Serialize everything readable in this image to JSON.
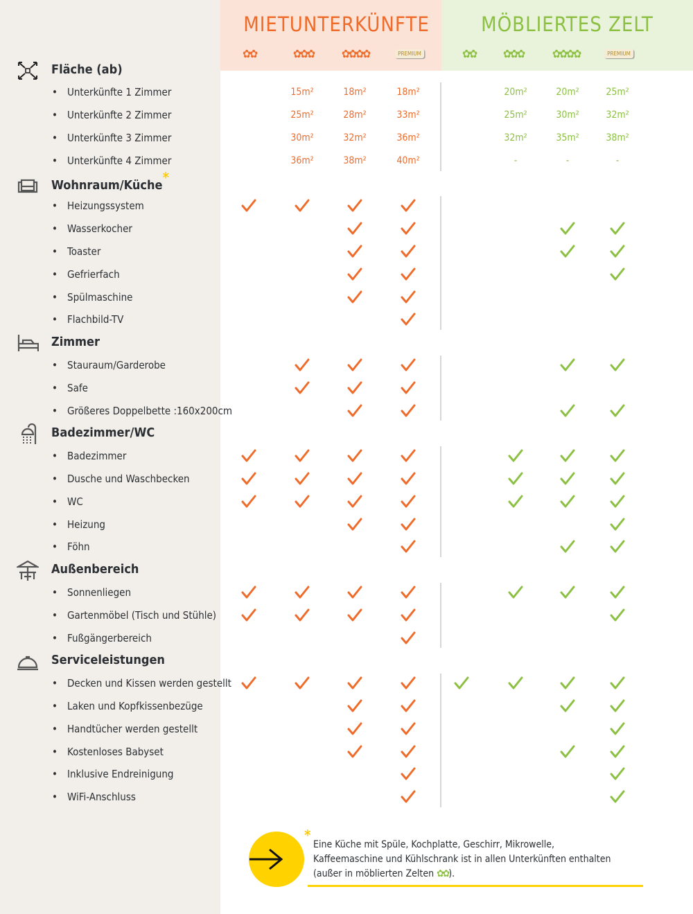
{
  "colors": {
    "orange": "#ee6b2a",
    "green": "#8cc043",
    "yellow": "#ffd200"
  },
  "header": {
    "rental": {
      "title": "MIETUNTERKÜNFTE",
      "ratings": [
        "✿✿",
        "✿✿✿",
        "✿✿✿✿",
        "PREMIUM"
      ]
    },
    "tent": {
      "title": "MÖBLIERTES ZELT",
      "ratings": [
        "✿✿",
        "✿✿✿",
        "✿✿✿✿",
        "PREMIUM"
      ]
    }
  },
  "sections": [
    {
      "title": "Fläche (ab)",
      "icon": "expand-arrows-icon",
      "items": [
        {
          "label": "Unterkünfte 1 Zimmer",
          "rental": [
            "",
            "15m²",
            "18m²",
            "18m²"
          ],
          "tent": [
            "",
            "20m²",
            "20m²",
            "25m²"
          ]
        },
        {
          "label": "Unterkünfte 2 Zimmer",
          "rental": [
            "",
            "25m²",
            "28m²",
            "33m²"
          ],
          "tent": [
            "",
            "25m²",
            "30m²",
            "32m²"
          ]
        },
        {
          "label": "Unterkünfte 3 Zimmer",
          "rental": [
            "",
            "30m²",
            "32m²",
            "36m²"
          ],
          "tent": [
            "",
            "32m²",
            "35m²",
            "38m²"
          ]
        },
        {
          "label": "Unterkünfte 4 Zimmer",
          "rental": [
            "",
            "36m²",
            "38m²",
            "40m²"
          ],
          "tent": [
            "",
            "-",
            "-",
            "-"
          ]
        }
      ]
    },
    {
      "title": "Wohnraum/Küche",
      "icon": "sofa-icon",
      "asterisk": "*",
      "items": [
        {
          "label": "Heizungssystem",
          "rental": [
            true,
            true,
            true,
            true
          ],
          "tent": [
            false,
            false,
            false,
            false
          ]
        },
        {
          "label": "Wasserkocher",
          "rental": [
            false,
            false,
            true,
            true
          ],
          "tent": [
            false,
            false,
            true,
            true
          ]
        },
        {
          "label": "Toaster",
          "rental": [
            false,
            false,
            true,
            true
          ],
          "tent": [
            false,
            false,
            true,
            true
          ]
        },
        {
          "label": "Gefrierfach",
          "rental": [
            false,
            false,
            true,
            true
          ],
          "tent": [
            false,
            false,
            false,
            true
          ]
        },
        {
          "label": "Spülmaschine",
          "rental": [
            false,
            false,
            true,
            true
          ],
          "tent": [
            false,
            false,
            false,
            false
          ]
        },
        {
          "label": "Flachbild-TV",
          "rental": [
            false,
            false,
            false,
            true
          ],
          "tent": [
            false,
            false,
            false,
            false
          ]
        }
      ]
    },
    {
      "title": "Zimmer",
      "icon": "bed-icon",
      "items": [
        {
          "label": "Stauraum/Garderobe",
          "rental": [
            false,
            true,
            true,
            true
          ],
          "tent": [
            false,
            false,
            true,
            true
          ]
        },
        {
          "label": "Safe",
          "rental": [
            false,
            true,
            true,
            true
          ],
          "tent": [
            false,
            false,
            false,
            false
          ]
        },
        {
          "label": "Größeres Doppelbette :160x200cm",
          "rental": [
            false,
            false,
            true,
            true
          ],
          "tent": [
            false,
            false,
            true,
            true
          ]
        }
      ]
    },
    {
      "title": "Badezimmer/WC",
      "icon": "shower-icon",
      "items": [
        {
          "label": "Badezimmer",
          "rental": [
            true,
            true,
            true,
            true
          ],
          "tent": [
            false,
            true,
            true,
            true
          ]
        },
        {
          "label": "Dusche und Waschbecken",
          "rental": [
            true,
            true,
            true,
            true
          ],
          "tent": [
            false,
            true,
            true,
            true
          ]
        },
        {
          "label": "WC",
          "rental": [
            true,
            true,
            true,
            true
          ],
          "tent": [
            false,
            true,
            true,
            true
          ]
        },
        {
          "label": "Heizung",
          "rental": [
            false,
            false,
            true,
            true
          ],
          "tent": [
            false,
            false,
            false,
            true
          ]
        },
        {
          "label": "Föhn",
          "rental": [
            false,
            false,
            false,
            true
          ],
          "tent": [
            false,
            false,
            true,
            true
          ]
        }
      ]
    },
    {
      "title": "Außenbereich",
      "icon": "parasol-table-icon",
      "items": [
        {
          "label": "Sonnenliegen",
          "rental": [
            true,
            true,
            true,
            true
          ],
          "tent": [
            false,
            true,
            true,
            true
          ]
        },
        {
          "label": "Gartenmöbel (Tisch und Stühle)",
          "rental": [
            true,
            true,
            true,
            true
          ],
          "tent": [
            false,
            false,
            false,
            true
          ]
        },
        {
          "label": "Fußgängerbereich",
          "rental": [
            false,
            false,
            false,
            true
          ],
          "tent": [
            false,
            false,
            false,
            false
          ]
        }
      ]
    },
    {
      "title": "Serviceleistungen",
      "icon": "cloche-icon",
      "items": [
        {
          "label": "Decken und Kissen werden gestellt",
          "rental": [
            true,
            true,
            true,
            true
          ],
          "tent": [
            true,
            true,
            true,
            true
          ]
        },
        {
          "label": "Laken und Kopfkissenbezüge",
          "rental": [
            false,
            false,
            true,
            true
          ],
          "tent": [
            false,
            false,
            true,
            true
          ]
        },
        {
          "label": "Handtücher werden gestellt",
          "rental": [
            false,
            false,
            true,
            true
          ],
          "tent": [
            false,
            false,
            false,
            true
          ]
        },
        {
          "label": "Kostenloses Babyset",
          "rental": [
            false,
            false,
            true,
            true
          ],
          "tent": [
            false,
            false,
            true,
            true
          ]
        },
        {
          "label": "Inklusive Endreinigung",
          "rental": [
            false,
            false,
            false,
            true
          ],
          "tent": [
            false,
            false,
            false,
            true
          ]
        },
        {
          "label": "WiFi-Anschluss",
          "rental": [
            false,
            false,
            false,
            true
          ],
          "tent": [
            false,
            false,
            false,
            true
          ]
        }
      ]
    }
  ],
  "footer": {
    "asterisk": "*",
    "line1": "Eine Küche mit Spüle, Kochplatte, Geschirr, Mikrowelle,",
    "line2": "Kaffeemaschine und Kühlschrank ist in allen Unterkünften enthalten",
    "line3_pre": "(außer in möblierten Zelten ",
    "line3_icon": "✿✿",
    "line3_post": ")."
  }
}
